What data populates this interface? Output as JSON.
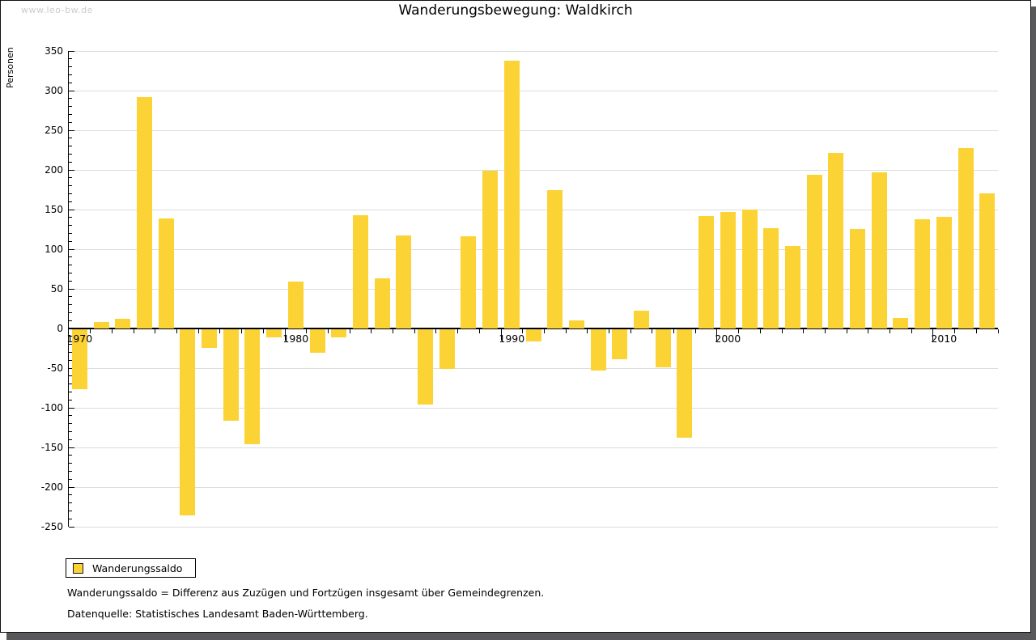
{
  "watermark": "www.leo-bw.de",
  "legend": {
    "label": "Wanderungssaldo"
  },
  "footnotes": [
    "Wanderungssaldo = Differenz aus Zuzügen und Fortzügen insgesamt über Gemeindegrenzen.",
    "Datenquelle: Statistisches Landesamt Baden-Württemberg."
  ],
  "colors": {
    "bar": "#fcd335",
    "grid": "#dcdcdc",
    "axis": "#000000",
    "watermark": "#cccccc",
    "shadow": "#59595b",
    "swatch_border": "#1a1a1a"
  },
  "chart_data": {
    "type": "bar",
    "title": "Wanderungsbewegung: Waldkirch",
    "ylabel": "Personen",
    "xlabel": "",
    "ylim": [
      -250,
      350
    ],
    "y_major_step": 50,
    "y_minor_step": 10,
    "grid": true,
    "legend_position": "bottom-left",
    "x": [
      1970,
      1971,
      1972,
      1973,
      1974,
      1975,
      1976,
      1977,
      1978,
      1979,
      1980,
      1981,
      1982,
      1983,
      1984,
      1985,
      1986,
      1987,
      1988,
      1989,
      1990,
      1991,
      1992,
      1993,
      1994,
      1995,
      1996,
      1997,
      1998,
      1999,
      2000,
      2001,
      2002,
      2003,
      2004,
      2005,
      2006,
      2007,
      2008,
      2009,
      2010,
      2011,
      2012
    ],
    "x_decade_labels": [
      "1970",
      "1980",
      "1990",
      "2000",
      "2010"
    ],
    "series": [
      {
        "name": "Wanderungssaldo",
        "values": [
          -75,
          8,
          12,
          292,
          139,
          -235,
          -23,
          -115,
          -145,
          -10,
          59,
          -30,
          -10,
          143,
          63,
          117,
          -95,
          -50,
          116,
          199,
          338,
          -15,
          175,
          10,
          -52,
          -38,
          22,
          -48,
          -137,
          142,
          147,
          150,
          127,
          104,
          194,
          221,
          126,
          197,
          13,
          138,
          141,
          228,
          170
        ]
      }
    ]
  }
}
